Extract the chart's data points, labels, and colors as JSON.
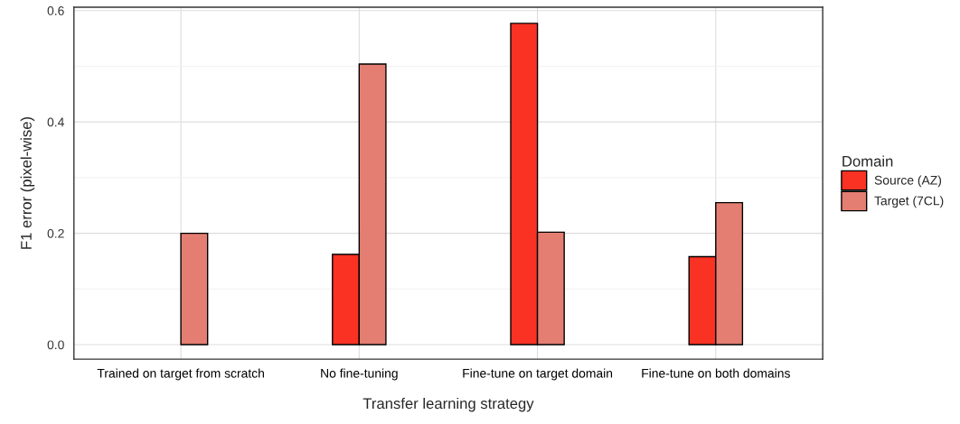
{
  "chart_data": {
    "type": "bar",
    "xlabel": "Transfer learning strategy",
    "ylabel": "F1 error (pixel-wise)",
    "legend_title": "Domain",
    "categories": [
      "Trained on target from scratch",
      "No fine-tuning",
      "Fine-tune on target domain",
      "Fine-tune on both domains"
    ],
    "series": [
      {
        "name": "Source (AZ)",
        "color": "#f93224",
        "values": [
          null,
          0.162,
          0.577,
          0.158
        ]
      },
      {
        "name": "Target (7CL)",
        "color": "#e47e72",
        "values": [
          0.2,
          0.504,
          0.202,
          0.255
        ]
      }
    ],
    "ylim": [
      -0.026,
      0.606
    ],
    "yticks": [
      {
        "value": 0.0,
        "label": "0.0"
      },
      {
        "value": 0.1,
        "label": null
      },
      0.2,
      {
        "value": 0.3,
        "label": null
      },
      0.4,
      {
        "value": 0.5,
        "label": null
      },
      0.6
    ],
    "grid": true,
    "legend": "right"
  }
}
